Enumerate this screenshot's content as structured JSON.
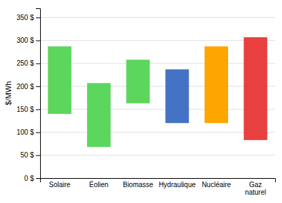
{
  "chart_data": {
    "type": "bar",
    "categories": [
      "Solaire",
      "Éolien",
      "Biomasse",
      "Hydraulique",
      "Nucléaire",
      "Gaz\nnaturel"
    ],
    "bottoms": [
      140,
      68,
      163,
      120,
      120,
      83
    ],
    "values": [
      287,
      207,
      258,
      237,
      287,
      307
    ],
    "colors": [
      "#5cd65c",
      "#5cd65c",
      "#5cd65c",
      "#4472c4",
      "#ffa500",
      "#e84040"
    ],
    "ylabel": "$/MWh",
    "ylim": [
      0,
      370
    ],
    "yticks": [
      {
        "value": 0,
        "label": "0 $"
      },
      {
        "value": 50,
        "label": "50 $"
      },
      {
        "value": 100,
        "label": "100 $"
      },
      {
        "value": 150,
        "label": "150 $"
      },
      {
        "value": 200,
        "label": "200 $"
      },
      {
        "value": 250,
        "label": "250 $"
      },
      {
        "value": 300,
        "label": "300 $"
      },
      {
        "value": 350,
        "label": "350 $"
      }
    ],
    "grid": true
  }
}
